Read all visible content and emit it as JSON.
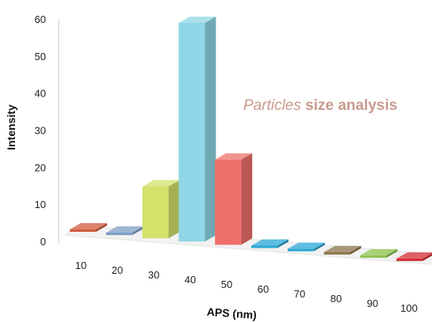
{
  "chart_data": {
    "type": "bar",
    "style": "3d",
    "categories": [
      "10",
      "20",
      "30",
      "40",
      "50",
      "60",
      "70",
      "80",
      "90",
      "100"
    ],
    "values": [
      0.5,
      0.5,
      14,
      59,
      23,
      0.5,
      0.5,
      0.5,
      0.5,
      0.5
    ],
    "bar_colors": [
      "#d05a3c",
      "#7d9cc4",
      "#d3e26b",
      "#8fd7e6",
      "#ef6f6a",
      "#2aa7d4",
      "#2aa7d4",
      "#8a7448",
      "#8cc24a",
      "#d42b34"
    ],
    "xlabel": "APS (nm)",
    "ylabel": "Intensity",
    "ylim": [
      0,
      60
    ],
    "yticks": [
      "0",
      "10",
      "20",
      "30",
      "40",
      "50",
      "60"
    ],
    "grid": false,
    "legend": "none",
    "annotation": {
      "light": "Particles ",
      "bold": "size analysis",
      "color": "#c99a8e"
    }
  }
}
